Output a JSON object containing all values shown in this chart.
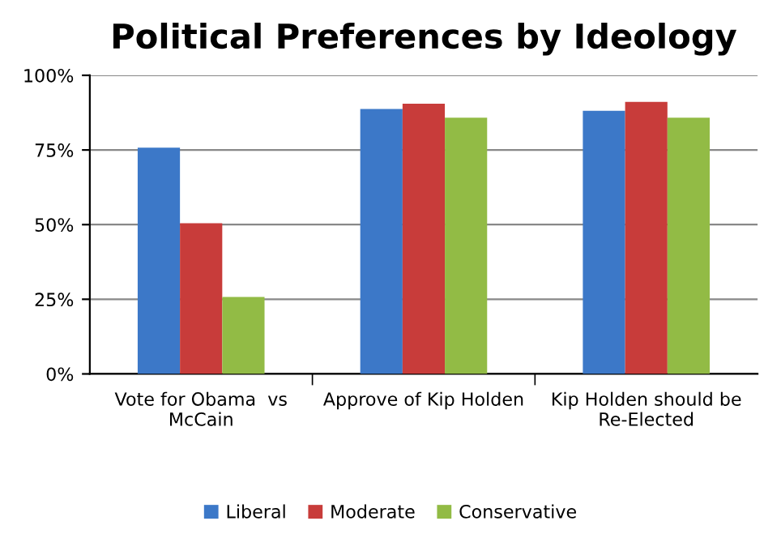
{
  "chart_data": {
    "type": "bar",
    "title": "Political Preferences by Ideology",
    "categories": [
      "Vote for Obama  vs\nMcCain",
      "Approve of Kip Holden",
      "Kip Holden should be\nRe-Elected"
    ],
    "series": [
      {
        "name": "Liberal",
        "color": "#3c78c8",
        "values": [
          75.8,
          88.7,
          88.1
        ]
      },
      {
        "name": "Moderate",
        "color": "#c83c3a",
        "values": [
          50.5,
          90.5,
          91.1
        ]
      },
      {
        "name": "Conservative",
        "color": "#92bb45",
        "values": [
          25.8,
          85.8,
          85.8
        ]
      }
    ],
    "ylim": [
      0,
      100
    ],
    "yticks": [
      {
        "value": 0,
        "label": "0%"
      },
      {
        "value": 25,
        "label": "25%"
      },
      {
        "value": 50,
        "label": "50%"
      },
      {
        "value": 75,
        "label": "75%"
      },
      {
        "value": 100,
        "label": "100%"
      }
    ],
    "grid": "y",
    "legend": "bottom"
  }
}
